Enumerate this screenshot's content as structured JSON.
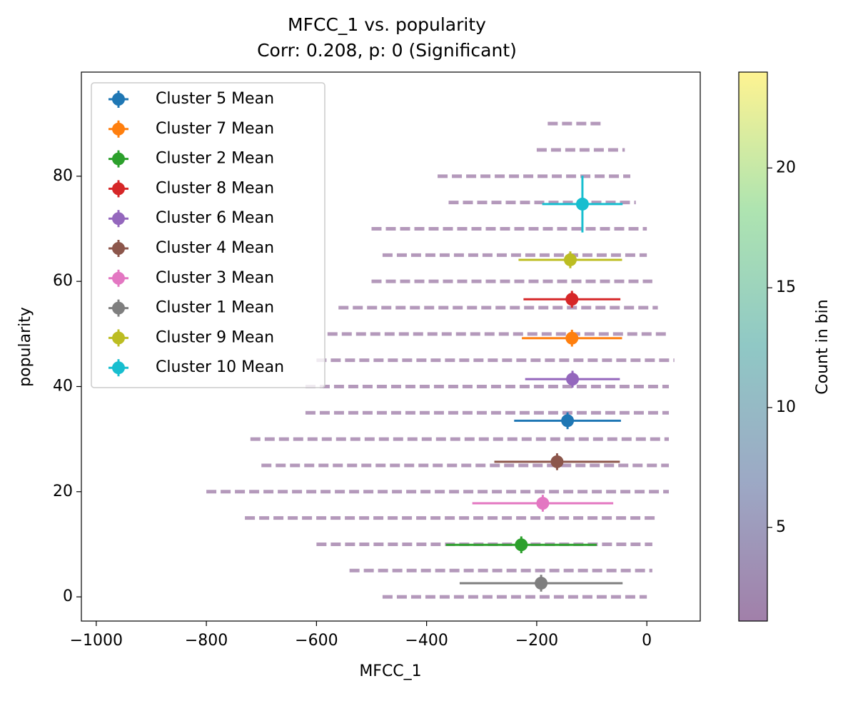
{
  "chart_data": {
    "type": "errorbar",
    "title": "MFCC_1 vs. popularity",
    "subtitle": "Corr: 0.208, p: 0 (Significant)",
    "x_label": "MFCC_1",
    "y_label": "popularity",
    "xlim": [
      -1027,
      97
    ],
    "ylim": [
      -4.6,
      99.8
    ],
    "xticks": [
      {
        "value": -1000,
        "label": "−1000"
      },
      {
        "value": -800,
        "label": "−800"
      },
      {
        "value": -600,
        "label": "−600"
      },
      {
        "value": -400,
        "label": "−400"
      },
      {
        "value": -200,
        "label": "−200"
      },
      0
    ],
    "yticks": [
      0,
      20,
      40,
      60,
      80
    ],
    "legend": "upper left",
    "density_color": "#440154",
    "density_rows": [
      {
        "y": 0,
        "xmin": -480,
        "xmax": 0
      },
      {
        "y": 5,
        "xmin": -540,
        "xmax": 10
      },
      {
        "y": 10,
        "xmin": -600,
        "xmax": 10
      },
      {
        "y": 15,
        "xmin": -730,
        "xmax": 20
      },
      {
        "y": 20,
        "xmin": -800,
        "xmax": 40
      },
      {
        "y": 25,
        "xmin": -700,
        "xmax": 40
      },
      {
        "y": 30,
        "xmin": -720,
        "xmax": 40
      },
      {
        "y": 35,
        "xmin": -620,
        "xmax": 40
      },
      {
        "y": 40,
        "xmin": -620,
        "xmax": 40
      },
      {
        "y": 45,
        "xmin": -600,
        "xmax": 50
      },
      {
        "y": 50,
        "xmin": -580,
        "xmax": 40
      },
      {
        "y": 55,
        "xmin": -560,
        "xmax": 20
      },
      {
        "y": 60,
        "xmin": -500,
        "xmax": 10
      },
      {
        "y": 65,
        "xmin": -480,
        "xmax": 0
      },
      {
        "y": 70,
        "xmin": -500,
        "xmax": 0
      },
      {
        "y": 75,
        "xmin": -360,
        "xmax": -20
      },
      {
        "y": 80,
        "xmin": -380,
        "xmax": -30
      },
      {
        "y": 85,
        "xmin": -200,
        "xmax": -40
      },
      {
        "y": 90,
        "xmin": -180,
        "xmax": -80
      }
    ],
    "colorbar": {
      "label": "Count in bin",
      "lim": [
        1.09,
        24.0
      ],
      "ticks": [
        5,
        10,
        15,
        20
      ]
    },
    "series": [
      {
        "name": "Cluster 5 Mean",
        "color": "#1f77b4",
        "x": -144,
        "y": 33.5,
        "xerr": 97,
        "yerr": 1.6
      },
      {
        "name": "Cluster 7 Mean",
        "color": "#ff7f0e",
        "x": -136,
        "y": 49.2,
        "xerr": 91,
        "yerr": 1.6
      },
      {
        "name": "Cluster 2 Mean",
        "color": "#2ca02c",
        "x": -228,
        "y": 9.9,
        "xerr": 137,
        "yerr": 1.6
      },
      {
        "name": "Cluster 8 Mean",
        "color": "#d62728",
        "x": -136,
        "y": 56.6,
        "xerr": 88,
        "yerr": 1.6
      },
      {
        "name": "Cluster 6 Mean",
        "color": "#9467bd",
        "x": -135,
        "y": 41.4,
        "xerr": 86,
        "yerr": 1.6
      },
      {
        "name": "Cluster 4 Mean",
        "color": "#8c564b",
        "x": -163,
        "y": 25.7,
        "xerr": 114,
        "yerr": 1.6
      },
      {
        "name": "Cluster 3 Mean",
        "color": "#e377c2",
        "x": -189,
        "y": 17.8,
        "xerr": 128,
        "yerr": 1.6
      },
      {
        "name": "Cluster 1 Mean",
        "color": "#7f7f7f",
        "x": -192,
        "y": 2.6,
        "xerr": 148,
        "yerr": 1.6
      },
      {
        "name": "Cluster 9 Mean",
        "color": "#bcbd22",
        "x": -139,
        "y": 64.1,
        "xerr": 94,
        "yerr": 1.6
      },
      {
        "name": "Cluster 10 Mean",
        "color": "#17becf",
        "x": -117,
        "y": 74.7,
        "xerr": 73,
        "yerr": 5.4
      }
    ]
  }
}
